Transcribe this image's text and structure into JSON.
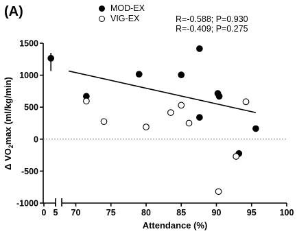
{
  "panel_label": "(A)",
  "legend": {
    "items": [
      {
        "label": "MOD-EX",
        "marker": "filled-circle"
      },
      {
        "label": "VIG-EX",
        "marker": "open-circle"
      }
    ]
  },
  "stats": [
    "R=-0.588; P=0.930",
    "R=-0.409; P=0.275"
  ],
  "chart_data": {
    "type": "scatter",
    "xlabel": "Attendance (%)",
    "ylabel": "Δ VO2max (ml/kg/min)",
    "x_break": [
      5,
      68
    ],
    "x_ticks": [
      0,
      5,
      70,
      75,
      80,
      85,
      90,
      95,
      100
    ],
    "y_ticks": [
      -1000,
      -500,
      0,
      500,
      1000,
      1500
    ],
    "ylim": [
      -1000,
      1500
    ],
    "zero_reference_line": "dashed",
    "series": [
      {
        "name": "MOD-EX",
        "marker": "filled",
        "points": [
          [
            3,
            1265
          ],
          [
            71.5,
            670
          ],
          [
            79,
            1015
          ],
          [
            85,
            1005
          ],
          [
            87.6,
            1415
          ],
          [
            87.6,
            340
          ],
          [
            90.2,
            715
          ],
          [
            90.4,
            670
          ],
          [
            93.2,
            -225
          ],
          [
            95.6,
            165
          ]
        ]
      },
      {
        "name": "VIG-EX",
        "marker": "open",
        "points": [
          [
            71.5,
            595
          ],
          [
            74,
            275
          ],
          [
            80,
            190
          ],
          [
            83.5,
            415
          ],
          [
            85,
            530
          ],
          [
            86.1,
            250
          ],
          [
            90.3,
            -820
          ],
          [
            92.8,
            -270
          ],
          [
            94.2,
            585
          ]
        ]
      }
    ],
    "trend_lines": [
      {
        "series": "MOD-EX",
        "from": [
          69,
          1065
        ],
        "to": [
          95.6,
          415
        ]
      },
      {
        "series": "extra",
        "from": [
          3,
          1065
        ],
        "to": [
          3,
          1350
        ]
      }
    ]
  }
}
